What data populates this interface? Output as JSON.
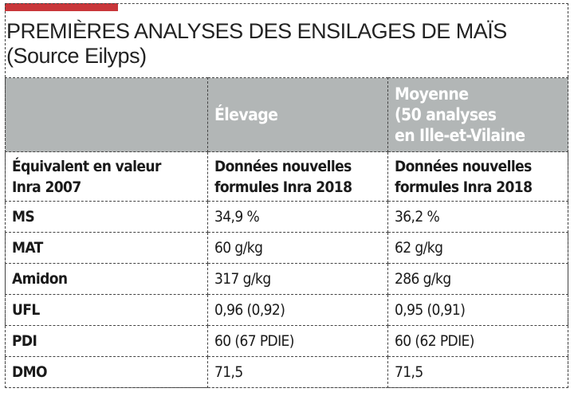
{
  "title": {
    "line1": "PREMIÈRES ANALYSES DES ENSILAGES DE MAÏS",
    "line2": "(Source Eilyps)"
  },
  "colors": {
    "accent": "#c9363a",
    "header_bg": "#b2b6b6"
  },
  "table": {
    "headers": [
      "",
      "Élevage",
      "Moyenne (50 analyses en Ille-et-Vilaine"
    ],
    "header_lines": {
      "col2": [
        "Moyenne",
        "(50 analyses",
        "en Ille-et-Vilaine"
      ]
    },
    "subheaders": [
      [
        "Équivalent en valeur",
        "Inra 2007"
      ],
      [
        "Données nouvelles",
        "formules Inra 2018"
      ],
      [
        "Données nouvelles",
        "formules Inra 2018"
      ]
    ],
    "rows": [
      [
        "MS",
        "34,9 %",
        "36,2 %"
      ],
      [
        "MAT",
        "60 g/kg",
        "62 g/kg"
      ],
      [
        "Amidon",
        "317 g/kg",
        "286 g/kg"
      ],
      [
        "UFL",
        "0,96 (0,92)",
        "0,95 (0,91)"
      ],
      [
        "PDI",
        "60 (67 PDIE)",
        "60 (62 PDIE)"
      ],
      [
        "DMO",
        "71,5",
        "71,5"
      ]
    ]
  }
}
